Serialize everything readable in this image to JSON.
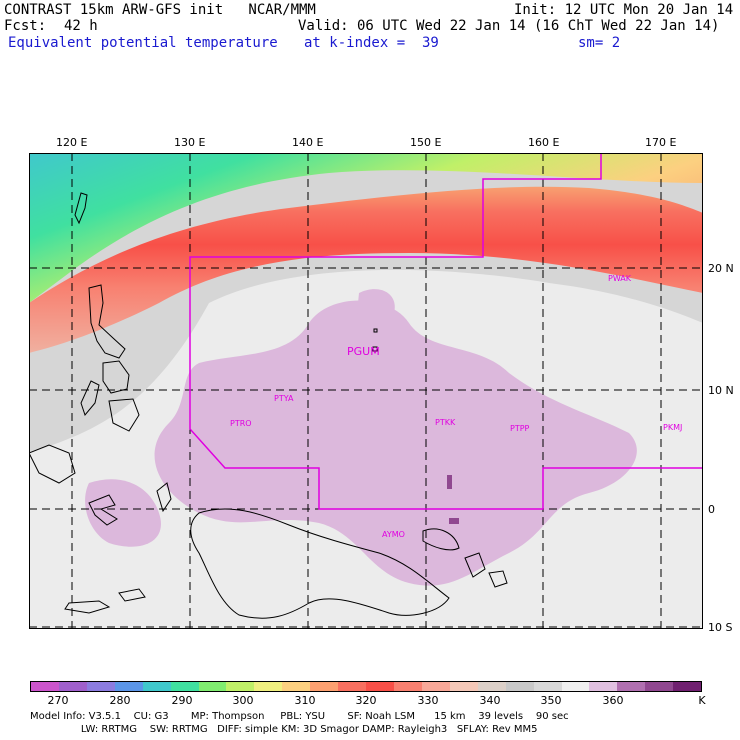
{
  "header": {
    "line1_left": "CONTRAST 15km ARW-GFS init   NCAR/MMM",
    "line1_right": "Init: 12 UTC Mon 20 Jan 14",
    "fcst_label": "Fcst:",
    "fcst_value": "42 h",
    "valid": "Valid: 06 UTC Wed 22 Jan 14 (16 ChT Wed 22 Jan 14)",
    "field_name": "Equivalent potential temperature",
    "level": "at k-index =  39",
    "smoothing": "sm= 2"
  },
  "map": {
    "lon_labels": [
      "120 E",
      "130 E",
      "140 E",
      "150 E",
      "160 E",
      "170 E"
    ],
    "lat_labels": [
      "20 N",
      "10 N",
      "0",
      "10 S"
    ],
    "stations": [
      {
        "id": "PWAK"
      },
      {
        "id": "PGUM"
      },
      {
        "id": "PTYA"
      },
      {
        "id": "PTRO"
      },
      {
        "id": "PTKK"
      },
      {
        "id": "PTPP"
      },
      {
        "id": "PKMJ"
      },
      {
        "id": "AYMO"
      }
    ]
  },
  "colorbar": {
    "colors": [
      "#cc55cc",
      "#a060cc",
      "#8c7ce0",
      "#5c96e8",
      "#40c8cc",
      "#40e0a0",
      "#80ec70",
      "#c0f068",
      "#f0f080",
      "#fcd080",
      "#fca070",
      "#f87060",
      "#f85048",
      "#f88070",
      "#f8a898",
      "#f4c8b8",
      "#dcd0c8",
      "#c8c8c8",
      "#d8d8d8",
      "#f0f0f0",
      "#e0c0e0",
      "#b070b0",
      "#904890",
      "#702070"
    ],
    "tick_labels": [
      "270",
      "280",
      "290",
      "300",
      "310",
      "320",
      "330",
      "340",
      "350",
      "360",
      "K"
    ]
  },
  "footer": {
    "line1": "Model Info: V3.5.1    CU: G3       MP: Thompson     PBL: YSU       SF: Noah LSM      15 km    39 levels    90 sec",
    "line2": "                LW: RRTMG    SW: RRTMG   DIFF: simple KM: 3D Smagor DAMP: Rayleigh3   SFLAY: Rev MM5"
  }
}
